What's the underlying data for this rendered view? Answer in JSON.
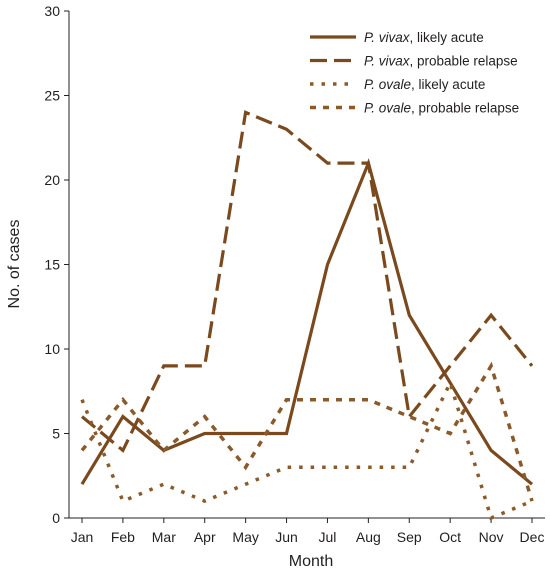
{
  "chart_data": {
    "type": "line",
    "title": "",
    "xlabel": "Month",
    "ylabel": "No. of cases",
    "ylim": [
      0,
      30
    ],
    "yticks": [
      0,
      5,
      10,
      15,
      20,
      25,
      30
    ],
    "categories": [
      "Jan",
      "Feb",
      "Mar",
      "Apr",
      "May",
      "Jun",
      "Jul",
      "Aug",
      "Sep",
      "Oct",
      "Nov",
      "Dec"
    ],
    "grid": false,
    "legend_position": "top-right",
    "series": [
      {
        "name": "P. vivax, likely acute",
        "name_italic": "P. vivax",
        "name_rest": ", likely acute",
        "style": "solid",
        "color": "#7a4a1e",
        "values": [
          2,
          6,
          4,
          5,
          5,
          5,
          15,
          21,
          12,
          8,
          4,
          2
        ]
      },
      {
        "name": "P. vivax, probable relapse",
        "name_italic": "P. vivax",
        "name_rest": ", probable relapse",
        "style": "long-dash",
        "color": "#7a4a1e",
        "values": [
          6,
          4,
          9,
          9,
          24,
          23,
          21,
          21,
          6,
          9,
          12,
          9
        ]
      },
      {
        "name": "P. ovale, likely acute",
        "name_italic": "P. ovale",
        "name_rest": ", likely acute",
        "style": "dotted",
        "color": "#8b5a2b",
        "values": [
          7,
          1,
          2,
          1,
          2,
          3,
          3,
          3,
          3,
          8,
          0,
          1
        ]
      },
      {
        "name": "P. ovale, probable relapse",
        "name_italic": "P. ovale",
        "name_rest": ", probable relapse",
        "style": "short-dash",
        "color": "#8b5a2b",
        "values": [
          4,
          7,
          4,
          6,
          3,
          7,
          7,
          7,
          6,
          5,
          9,
          1
        ]
      }
    ]
  }
}
